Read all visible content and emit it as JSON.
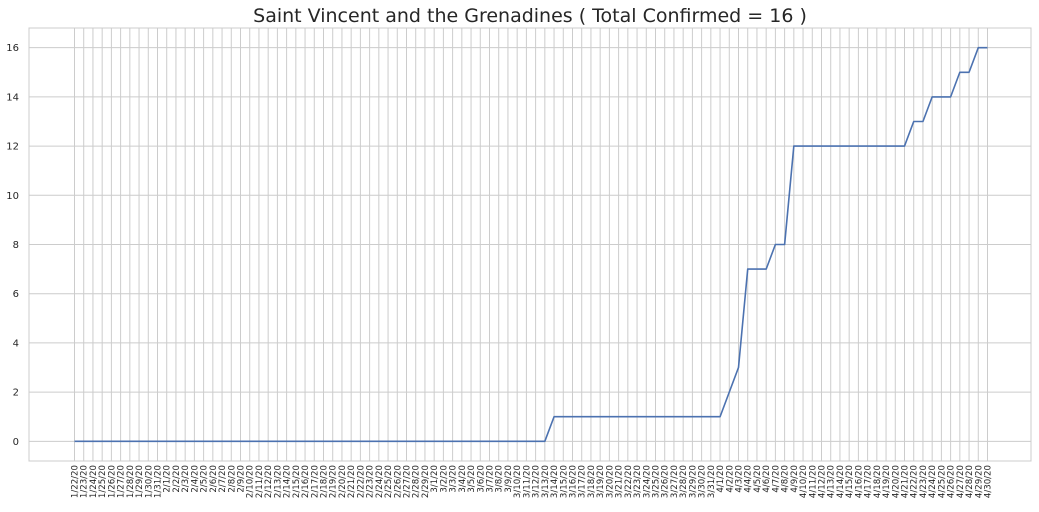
{
  "chart_data": {
    "type": "line",
    "title": "Saint Vincent and the Grenadines ( Total Confirmed = 16 )",
    "xlabel": "",
    "ylabel": "",
    "ylim": [
      -0.8,
      16.8
    ],
    "yticks": [
      "0",
      "2",
      "4",
      "6",
      "8",
      "10",
      "12",
      "14",
      "16"
    ],
    "grid": true,
    "x": [
      "1/22/20",
      "1/23/20",
      "1/24/20",
      "1/25/20",
      "1/26/20",
      "1/27/20",
      "1/28/20",
      "1/29/20",
      "1/30/20",
      "1/31/20",
      "2/1/20",
      "2/2/20",
      "2/3/20",
      "2/4/20",
      "2/5/20",
      "2/6/20",
      "2/7/20",
      "2/8/20",
      "2/9/20",
      "2/10/20",
      "2/11/20",
      "2/12/20",
      "2/13/20",
      "2/14/20",
      "2/15/20",
      "2/16/20",
      "2/17/20",
      "2/18/20",
      "2/19/20",
      "2/20/20",
      "2/21/20",
      "2/22/20",
      "2/23/20",
      "2/24/20",
      "2/25/20",
      "2/26/20",
      "2/27/20",
      "2/28/20",
      "2/29/20",
      "3/1/20",
      "3/2/20",
      "3/3/20",
      "3/4/20",
      "3/5/20",
      "3/6/20",
      "3/7/20",
      "3/8/20",
      "3/9/20",
      "3/10/20",
      "3/11/20",
      "3/12/20",
      "3/13/20",
      "3/14/20",
      "3/15/20",
      "3/16/20",
      "3/17/20",
      "3/18/20",
      "3/19/20",
      "3/20/20",
      "3/21/20",
      "3/22/20",
      "3/23/20",
      "3/24/20",
      "3/25/20",
      "3/26/20",
      "3/27/20",
      "3/28/20",
      "3/29/20",
      "3/30/20",
      "3/31/20",
      "4/1/20",
      "4/2/20",
      "4/3/20",
      "4/4/20",
      "4/5/20",
      "4/6/20",
      "4/7/20",
      "4/8/20",
      "4/9/20",
      "4/10/20",
      "4/11/20",
      "4/12/20",
      "4/13/20",
      "4/14/20",
      "4/15/20",
      "4/16/20",
      "4/17/20",
      "4/18/20",
      "4/19/20",
      "4/20/20",
      "4/21/20",
      "4/22/20",
      "4/23/20",
      "4/24/20",
      "4/25/20",
      "4/26/20",
      "4/27/20",
      "4/28/20",
      "4/29/20",
      "4/30/20"
    ],
    "series": [
      {
        "name": "",
        "values": [
          0,
          0,
          0,
          0,
          0,
          0,
          0,
          0,
          0,
          0,
          0,
          0,
          0,
          0,
          0,
          0,
          0,
          0,
          0,
          0,
          0,
          0,
          0,
          0,
          0,
          0,
          0,
          0,
          0,
          0,
          0,
          0,
          0,
          0,
          0,
          0,
          0,
          0,
          0,
          0,
          0,
          0,
          0,
          0,
          0,
          0,
          0,
          0,
          0,
          0,
          0,
          0,
          1,
          1,
          1,
          1,
          1,
          1,
          1,
          1,
          1,
          1,
          1,
          1,
          1,
          1,
          1,
          1,
          1,
          1,
          1,
          2,
          3,
          7,
          7,
          7,
          8,
          8,
          12,
          12,
          12,
          12,
          12,
          12,
          12,
          12,
          12,
          12,
          12,
          12,
          12,
          13,
          13,
          14,
          14,
          14,
          15,
          15,
          16,
          16
        ]
      }
    ],
    "colors": {
      "line": "#4c72b0",
      "grid": "#cccccc",
      "background": "#ffffff"
    }
  }
}
